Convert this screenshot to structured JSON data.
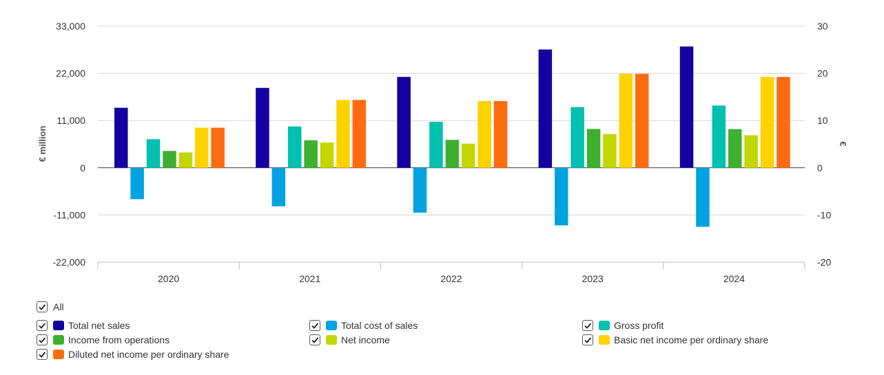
{
  "chart_data": {
    "type": "bar",
    "categories": [
      "2020",
      "2021",
      "2022",
      "2023",
      "2024"
    ],
    "y_left": {
      "label": "€ million",
      "lim": [
        -22000,
        33000
      ],
      "ticks": [
        -22000,
        -11000,
        0,
        11000,
        22000,
        33000
      ],
      "tick_labels": [
        "-22,000",
        "-11,000",
        "0",
        "11,000",
        "22,000",
        "33,000"
      ]
    },
    "y_right": {
      "label": "€",
      "lim": [
        -20,
        30
      ],
      "ticks": [
        -20,
        -10,
        0,
        10,
        20,
        30
      ],
      "tick_labels": [
        "-20",
        "-10",
        "0",
        "10",
        "20",
        "30"
      ]
    },
    "grid": true,
    "legend_position": "bottom",
    "series": [
      {
        "name": "Total net sales",
        "color": "#1400a0",
        "axis": "left",
        "values": [
          13979,
          18611,
          21173,
          27559,
          28262
        ]
      },
      {
        "name": "Total cost of sales",
        "color": "#00a3e0",
        "axis": "left",
        "values": [
          -7326,
          -8987,
          -10469,
          -13422,
          -13758
        ]
      },
      {
        "name": "Gross profit",
        "color": "#00c0b0",
        "axis": "left",
        "values": [
          6653,
          9624,
          10704,
          14137,
          14504
        ]
      },
      {
        "name": "Income from operations",
        "color": "#3db030",
        "axis": "left",
        "values": [
          3918,
          6414,
          6501,
          9042,
          9011
        ]
      },
      {
        "name": "Net income",
        "color": "#c4d600",
        "axis": "left",
        "values": [
          3554,
          5883,
          5624,
          7839,
          7572
        ]
      },
      {
        "name": "Basic net income per ordinary share",
        "color": "#ffd200",
        "axis": "right",
        "values": [
          8.49,
          14.36,
          14.14,
          19.91,
          19.25
        ]
      },
      {
        "name": "Diluted net income per ordinary share",
        "color": "#ff6b0f",
        "axis": "right",
        "values": [
          8.49,
          14.36,
          14.13,
          19.89,
          19.24
        ]
      }
    ]
  },
  "legend": {
    "all_label": "All",
    "items": [
      {
        "label": "Total net sales",
        "color": "#1400a0",
        "checked": true
      },
      {
        "label": "Total cost of sales",
        "color": "#00a3e0",
        "checked": true
      },
      {
        "label": "Gross profit",
        "color": "#00c0b0",
        "checked": true
      },
      {
        "label": "Income from operations",
        "color": "#3db030",
        "checked": true
      },
      {
        "label": "Net income",
        "color": "#c4d600",
        "checked": true
      },
      {
        "label": "Basic net income per ordinary share",
        "color": "#ffd200",
        "checked": true
      },
      {
        "label": "Diluted net income per ordinary share",
        "color": "#ff6b0f",
        "checked": true
      }
    ]
  }
}
